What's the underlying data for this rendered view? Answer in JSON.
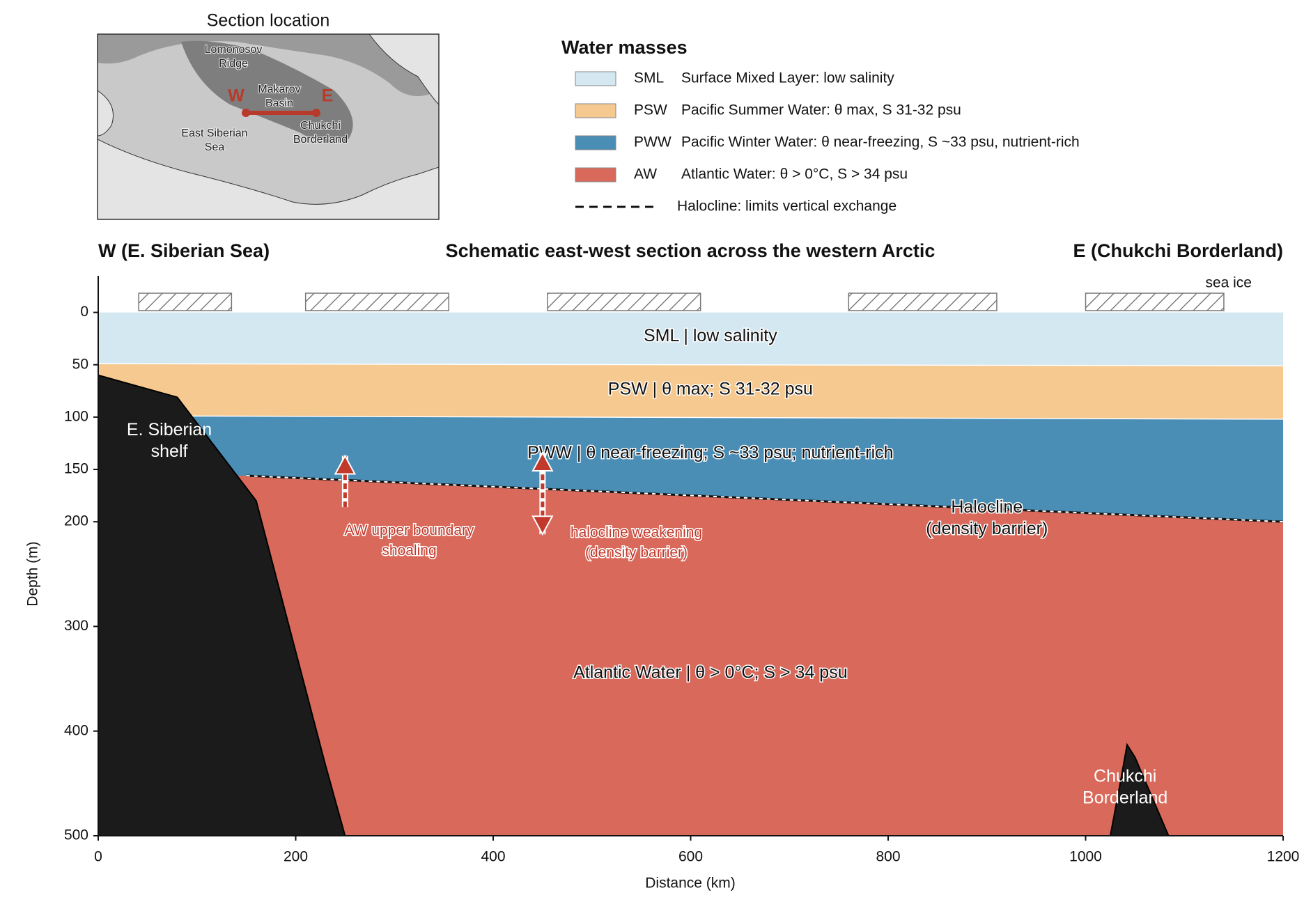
{
  "chart_data": {
    "type": "section",
    "title": "Schematic east-west section across the western Arctic",
    "left_label": "W (E. Siberian Sea)",
    "right_label": "E (Chukchi Borderland)",
    "x_label": "Distance (km)",
    "y_label": "Depth (m)",
    "xlim": [
      0,
      1200
    ],
    "ylim": [
      500,
      -35
    ],
    "xticks": [
      0,
      200,
      400,
      600,
      800,
      1000,
      1200
    ],
    "yticks": [
      0,
      50,
      100,
      150,
      200,
      300,
      400,
      500
    ],
    "legend_title": "Water masses",
    "layers": [
      {
        "abbr": "SML",
        "description": "Surface Mixed Layer: low salinity",
        "label": "SML | low salinity",
        "color": "#d4e8f1",
        "base": {
          "x": [
            0,
            1200
          ],
          "y": [
            49,
            51
          ]
        }
      },
      {
        "abbr": "PSW",
        "description": "Pacific Summer Water: θ max, S 31-32 psu",
        "label": "PSW | θ max; S 31-32 psu",
        "color": "#f5c98f",
        "base": {
          "x": [
            100,
            1200
          ],
          "y": [
            99,
            102
          ]
        }
      },
      {
        "abbr": "PWW",
        "description": "Pacific Winter Water: θ near-freezing, S ~33 psu, nutrient-rich",
        "label": "PWW | θ near-freezing; S ~33 psu; nutrient-rich",
        "color": "#4a8db5"
      },
      {
        "abbr": "AW",
        "description": "Atlantic Water: θ > 0°C, S > 34 psu",
        "label": "Atlantic Water | θ > 0°C; S > 34 psu",
        "color": "#d9695a"
      }
    ],
    "halocline": {
      "legend": "Halocline: limits vertical exchange",
      "label": [
        "Halocline",
        "(density barrier)"
      ],
      "x": [
        150,
        1200
      ],
      "y": [
        156,
        200
      ]
    },
    "landforms": [
      {
        "label": [
          "E. Siberian",
          "shelf"
        ],
        "x": [
          0,
          80,
          160,
          230,
          250
        ],
        "y": [
          60,
          81,
          180,
          432,
          500
        ]
      },
      {
        "label": [
          "Chukchi",
          "Borderland"
        ],
        "x": [
          1025,
          1035,
          1042,
          1050,
          1084
        ],
        "y": [
          500,
          450,
          413,
          425,
          500
        ]
      }
    ],
    "sea_ice": {
      "label": "sea ice",
      "x": [
        [
          41,
          135
        ],
        [
          210,
          355
        ],
        [
          455,
          610
        ],
        [
          760,
          910
        ],
        [
          1000,
          1140
        ]
      ]
    },
    "annotations": [
      {
        "text": [
          "AW upper boundary",
          "shoaling"
        ]
      },
      {
        "text": [
          "halocline weakening",
          "(density barrier)"
        ]
      }
    ]
  },
  "map": {
    "title": "Section location",
    "west": "W",
    "east": "E",
    "labels": [
      [
        "Lomonosov",
        "Ridge"
      ],
      [
        "Makarov",
        "Basin"
      ],
      [
        "East Siberian",
        "Sea"
      ],
      [
        "Chukchi",
        "Borderland"
      ]
    ]
  }
}
